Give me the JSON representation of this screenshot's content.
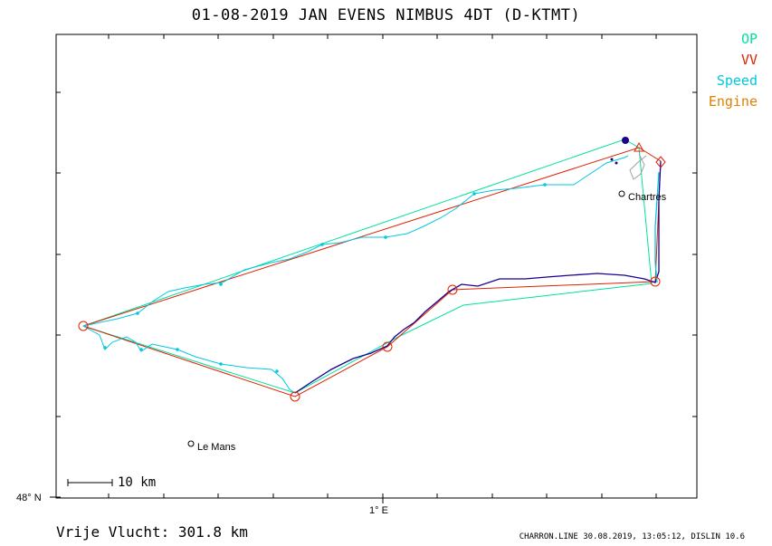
{
  "title": "01-08-2019   JAN EVENS   NIMBUS 4DT (D-KTMT)",
  "legend": [
    {
      "label": "OP",
      "color": "#00e0a0"
    },
    {
      "label": "VV",
      "color": "#e02000"
    },
    {
      "label": "Speed",
      "color": "#00c8e0"
    },
    {
      "label": "Engine",
      "color": "#e08000"
    }
  ],
  "axis": {
    "lat_label": "48° N",
    "lon_label": "1° E"
  },
  "scale": {
    "label": "10 km"
  },
  "towns": [
    {
      "name": "Chartres"
    },
    {
      "name": "Le Mans"
    }
  ],
  "footer": {
    "distance": "Vrije Vlucht:  301.8 km",
    "credits": "CHARRON.LINE 30.08.2019, 13:05:12, DISLIN 10.6"
  },
  "colors": {
    "op": "#00e0a0",
    "vv": "#e02000",
    "speed": "#00c8e0",
    "engine": "#e08000",
    "track": "#1a0090",
    "frame": "#000000"
  }
}
